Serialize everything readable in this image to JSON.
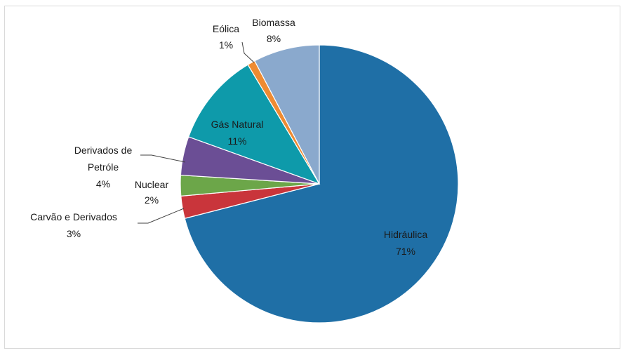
{
  "chart_data": {
    "type": "pie",
    "start_angle_deg": 0,
    "direction": "clockwise",
    "slices": [
      {
        "name": "Hidráulica",
        "label": "71%",
        "value": 71.0,
        "color": "#1f6fa6"
      },
      {
        "name": "Carvão e Derivados",
        "label": "3%",
        "value": 2.6,
        "color": "#c9353b"
      },
      {
        "name": "Nuclear",
        "label": "2%",
        "value": 2.4,
        "color": "#6ca649"
      },
      {
        "name": "Derivados de Petróle",
        "label": "4%",
        "value": 4.5,
        "color": "#6b4e95"
      },
      {
        "name": "Gás Natural",
        "label": "11%",
        "value": 10.9,
        "color": "#0e9aaa"
      },
      {
        "name": "Eólica",
        "label": "1%",
        "value": 0.9,
        "color": "#ee8b32"
      },
      {
        "name": "Biomassa",
        "label": "8%",
        "value": 7.7,
        "color": "#8aa9cd"
      }
    ]
  }
}
